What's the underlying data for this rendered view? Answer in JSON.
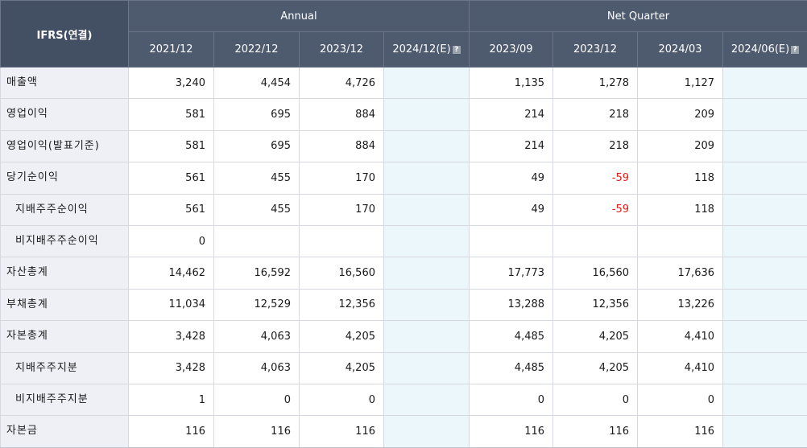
{
  "table": {
    "corner_label": "IFRS(연결)",
    "group_annual": "Annual",
    "group_quarter": "Net Quarter",
    "annual_periods": [
      "2021/12",
      "2022/12",
      "2023/12",
      "2024/12(E)"
    ],
    "quarter_periods": [
      "2023/09",
      "2023/12",
      "2024/03",
      "2024/06(E)"
    ],
    "estimate_icon": "question-icon",
    "colors": {
      "header_bg": "#4e5a6e",
      "label_bg": "#eef0f5",
      "estimate_bg": "#ebf7fb",
      "negative": "#e0201b"
    },
    "rows": [
      {
        "label": "매출액",
        "indent": false,
        "annual": [
          "3,240",
          "4,454",
          "4,726",
          ""
        ],
        "quarter": [
          "1,135",
          "1,278",
          "1,127",
          ""
        ]
      },
      {
        "label": "영업이익",
        "indent": false,
        "annual": [
          "581",
          "695",
          "884",
          ""
        ],
        "quarter": [
          "214",
          "218",
          "209",
          ""
        ]
      },
      {
        "label": "영업이익(발표기준)",
        "indent": false,
        "annual": [
          "581",
          "695",
          "884",
          ""
        ],
        "quarter": [
          "214",
          "218",
          "209",
          ""
        ]
      },
      {
        "label": "당기순이익",
        "indent": false,
        "annual": [
          "561",
          "455",
          "170",
          ""
        ],
        "quarter": [
          "49",
          "-59",
          "118",
          ""
        ]
      },
      {
        "label": "지배주주순이익",
        "indent": true,
        "annual": [
          "561",
          "455",
          "170",
          ""
        ],
        "quarter": [
          "49",
          "-59",
          "118",
          ""
        ]
      },
      {
        "label": "비지배주주순이익",
        "indent": true,
        "annual": [
          "0",
          "",
          "",
          ""
        ],
        "quarter": [
          "",
          "",
          "",
          ""
        ]
      },
      {
        "label": "자산총계",
        "indent": false,
        "annual": [
          "14,462",
          "16,592",
          "16,560",
          ""
        ],
        "quarter": [
          "17,773",
          "16,560",
          "17,636",
          ""
        ]
      },
      {
        "label": "부채총계",
        "indent": false,
        "annual": [
          "11,034",
          "12,529",
          "12,356",
          ""
        ],
        "quarter": [
          "13,288",
          "12,356",
          "13,226",
          ""
        ]
      },
      {
        "label": "자본총계",
        "indent": false,
        "annual": [
          "3,428",
          "4,063",
          "4,205",
          ""
        ],
        "quarter": [
          "4,485",
          "4,205",
          "4,410",
          ""
        ]
      },
      {
        "label": "지배주주지분",
        "indent": true,
        "annual": [
          "3,428",
          "4,063",
          "4,205",
          ""
        ],
        "quarter": [
          "4,485",
          "4,205",
          "4,410",
          ""
        ]
      },
      {
        "label": "비지배주주지분",
        "indent": true,
        "annual": [
          "1",
          "0",
          "0",
          ""
        ],
        "quarter": [
          "0",
          "0",
          "0",
          ""
        ]
      },
      {
        "label": "자본금",
        "indent": false,
        "annual": [
          "116",
          "116",
          "116",
          ""
        ],
        "quarter": [
          "116",
          "116",
          "116",
          ""
        ]
      }
    ]
  }
}
